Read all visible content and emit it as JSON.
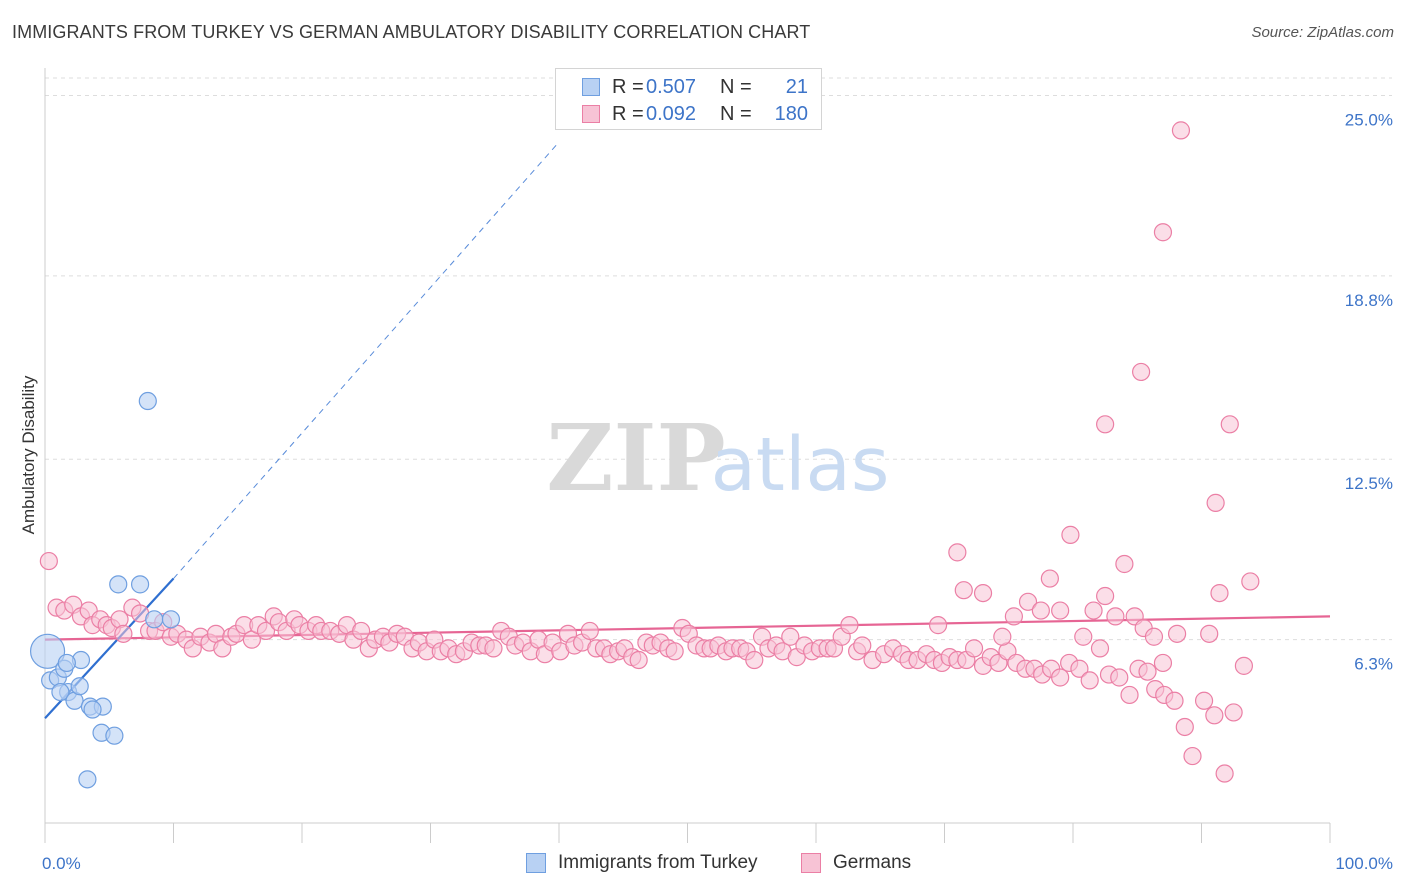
{
  "title": "IMMIGRANTS FROM TURKEY VS GERMAN AMBULATORY DISABILITY CORRELATION CHART",
  "source": "Source: ZipAtlas.com",
  "watermark": {
    "zip": "ZIP",
    "atlas": "atlas"
  },
  "colors": {
    "blue": "#6f9fe0",
    "blue_fill": "#b8d1f3",
    "blue_line": "#2f6fd0",
    "pink": "#eb7fa5",
    "pink_fill": "#f7c3d5",
    "pink_line": "#e66594",
    "axis_text": "#3d74c8",
    "grid": "#dddddd"
  },
  "legend": {
    "rows": [
      {
        "r_label": "R =",
        "r_value": "0.507",
        "n_label": "N =",
        "n_value": "21"
      },
      {
        "r_label": "R =",
        "r_value": "0.092",
        "n_label": "N =",
        "n_value": "180"
      }
    ]
  },
  "bottom_legend": [
    "Immigrants from Turkey",
    "Germans"
  ],
  "chart_data": {
    "type": "scatter",
    "title": "IMMIGRANTS FROM TURKEY VS GERMAN AMBULATORY DISABILITY CORRELATION CHART",
    "xlabel": "",
    "ylabel": "Ambulatory Disability",
    "xlim": [
      0,
      100
    ],
    "ylim": [
      0,
      25.6
    ],
    "x_tick_labels": [
      "0.0%",
      "100.0%"
    ],
    "y_ticks": [
      6.3,
      12.5,
      18.8,
      25.0
    ],
    "y_tick_labels": [
      "6.3%",
      "12.5%",
      "18.8%",
      "25.0%"
    ],
    "grid": true,
    "legend_position": "top-center",
    "series": [
      {
        "name": "Immigrants from Turkey",
        "r": 0.507,
        "n": 21,
        "trend": {
          "x0": 0,
          "y0": 3.6,
          "x1": 10,
          "y1": 8.4,
          "extend_to_x": 40,
          "extend_to_y": 23.4
        },
        "points": [
          [
            0.2,
            5.9
          ],
          [
            0.4,
            4.9
          ],
          [
            1.0,
            5.0
          ],
          [
            1.5,
            5.3
          ],
          [
            1.8,
            4.5
          ],
          [
            1.2,
            4.5
          ],
          [
            2.3,
            4.2
          ],
          [
            2.8,
            5.6
          ],
          [
            2.7,
            4.7
          ],
          [
            3.5,
            4.0
          ],
          [
            4.5,
            4.0
          ],
          [
            3.7,
            3.9
          ],
          [
            4.4,
            3.1
          ],
          [
            5.4,
            3.0
          ],
          [
            3.3,
            1.5
          ],
          [
            5.7,
            8.2
          ],
          [
            7.4,
            8.2
          ],
          [
            8.5,
            7.0
          ],
          [
            9.8,
            7.0
          ],
          [
            8.0,
            14.5
          ],
          [
            1.7,
            5.5
          ]
        ]
      },
      {
        "name": "Germans",
        "r": 0.092,
        "n": 180,
        "trend": {
          "x0": 0,
          "y0": 6.3,
          "x1": 100,
          "y1": 7.1
        },
        "points": [
          [
            0.3,
            9.0
          ],
          [
            0.9,
            7.4
          ],
          [
            1.5,
            7.3
          ],
          [
            2.2,
            7.5
          ],
          [
            2.8,
            7.1
          ],
          [
            3.4,
            7.3
          ],
          [
            3.7,
            6.8
          ],
          [
            4.3,
            7.0
          ],
          [
            4.8,
            6.8
          ],
          [
            5.2,
            6.7
          ],
          [
            5.8,
            7.0
          ],
          [
            6.1,
            6.5
          ],
          [
            6.8,
            7.4
          ],
          [
            7.4,
            7.2
          ],
          [
            8.1,
            6.6
          ],
          [
            8.6,
            6.6
          ],
          [
            9.2,
            6.9
          ],
          [
            9.8,
            6.4
          ],
          [
            10.3,
            6.5
          ],
          [
            11.0,
            6.3
          ],
          [
            11.5,
            6.0
          ],
          [
            12.1,
            6.4
          ],
          [
            12.8,
            6.2
          ],
          [
            13.3,
            6.5
          ],
          [
            13.8,
            6.0
          ],
          [
            14.5,
            6.4
          ],
          [
            14.9,
            6.5
          ],
          [
            15.5,
            6.8
          ],
          [
            16.1,
            6.3
          ],
          [
            16.6,
            6.8
          ],
          [
            17.2,
            6.6
          ],
          [
            17.8,
            7.1
          ],
          [
            18.2,
            6.9
          ],
          [
            18.8,
            6.6
          ],
          [
            19.4,
            7.0
          ],
          [
            19.8,
            6.8
          ],
          [
            20.5,
            6.6
          ],
          [
            21.1,
            6.8
          ],
          [
            21.5,
            6.6
          ],
          [
            22.2,
            6.6
          ],
          [
            22.9,
            6.5
          ],
          [
            23.5,
            6.8
          ],
          [
            24.0,
            6.3
          ],
          [
            24.6,
            6.6
          ],
          [
            25.2,
            6.0
          ],
          [
            25.7,
            6.3
          ],
          [
            26.3,
            6.4
          ],
          [
            26.8,
            6.2
          ],
          [
            27.4,
            6.5
          ],
          [
            28.0,
            6.4
          ],
          [
            28.6,
            6.0
          ],
          [
            29.1,
            6.2
          ],
          [
            29.7,
            5.9
          ],
          [
            30.3,
            6.3
          ],
          [
            30.8,
            5.9
          ],
          [
            31.4,
            6.0
          ],
          [
            32.0,
            5.8
          ],
          [
            32.6,
            5.9
          ],
          [
            33.2,
            6.2
          ],
          [
            33.8,
            6.1
          ],
          [
            34.3,
            6.1
          ],
          [
            34.9,
            6.0
          ],
          [
            35.5,
            6.6
          ],
          [
            36.1,
            6.4
          ],
          [
            36.6,
            6.1
          ],
          [
            37.2,
            6.2
          ],
          [
            37.8,
            5.9
          ],
          [
            38.4,
            6.3
          ],
          [
            38.9,
            5.8
          ],
          [
            39.5,
            6.2
          ],
          [
            40.1,
            5.9
          ],
          [
            40.7,
            6.5
          ],
          [
            41.2,
            6.1
          ],
          [
            41.8,
            6.2
          ],
          [
            42.4,
            6.6
          ],
          [
            42.9,
            6.0
          ],
          [
            43.5,
            6.0
          ],
          [
            44.0,
            5.8
          ],
          [
            44.6,
            5.9
          ],
          [
            45.1,
            6.0
          ],
          [
            45.7,
            5.7
          ],
          [
            46.2,
            5.6
          ],
          [
            46.8,
            6.2
          ],
          [
            47.3,
            6.1
          ],
          [
            47.9,
            6.2
          ],
          [
            48.5,
            6.0
          ],
          [
            49.0,
            5.9
          ],
          [
            49.6,
            6.7
          ],
          [
            50.1,
            6.5
          ],
          [
            50.7,
            6.1
          ],
          [
            51.3,
            6.0
          ],
          [
            51.8,
            6.0
          ],
          [
            52.4,
            6.1
          ],
          [
            53.0,
            5.9
          ],
          [
            53.5,
            6.0
          ],
          [
            54.1,
            6.0
          ],
          [
            54.6,
            5.9
          ],
          [
            55.2,
            5.6
          ],
          [
            55.8,
            6.4
          ],
          [
            56.3,
            6.0
          ],
          [
            56.9,
            6.1
          ],
          [
            57.4,
            5.9
          ],
          [
            58.0,
            6.4
          ],
          [
            58.5,
            5.7
          ],
          [
            59.1,
            6.1
          ],
          [
            59.7,
            5.9
          ],
          [
            60.3,
            6.0
          ],
          [
            60.9,
            6.0
          ],
          [
            61.4,
            6.0
          ],
          [
            62.0,
            6.4
          ],
          [
            62.6,
            6.8
          ],
          [
            63.2,
            5.9
          ],
          [
            63.6,
            6.1
          ],
          [
            64.4,
            5.6
          ],
          [
            65.3,
            5.8
          ],
          [
            66.0,
            6.0
          ],
          [
            66.7,
            5.8
          ],
          [
            67.2,
            5.6
          ],
          [
            67.9,
            5.6
          ],
          [
            68.6,
            5.8
          ],
          [
            69.2,
            5.6
          ],
          [
            69.8,
            5.5
          ],
          [
            70.4,
            5.7
          ],
          [
            71.0,
            5.6
          ],
          [
            71.7,
            5.6
          ],
          [
            72.3,
            6.0
          ],
          [
            73.0,
            5.4
          ],
          [
            73.6,
            5.7
          ],
          [
            74.2,
            5.5
          ],
          [
            74.9,
            5.9
          ],
          [
            75.6,
            5.5
          ],
          [
            76.3,
            5.3
          ],
          [
            77.0,
            5.3
          ],
          [
            77.6,
            5.1
          ],
          [
            78.3,
            5.3
          ],
          [
            79.0,
            5.0
          ],
          [
            79.7,
            5.5
          ],
          [
            80.5,
            5.3
          ],
          [
            81.3,
            4.9
          ],
          [
            82.1,
            6.0
          ],
          [
            82.8,
            5.1
          ],
          [
            83.6,
            5.0
          ],
          [
            84.4,
            4.4
          ],
          [
            85.1,
            5.3
          ],
          [
            85.8,
            5.2
          ],
          [
            86.4,
            4.6
          ],
          [
            87.1,
            4.4
          ],
          [
            87.9,
            4.2
          ],
          [
            88.7,
            3.3
          ],
          [
            89.3,
            2.3
          ],
          [
            90.2,
            4.2
          ],
          [
            91.0,
            3.7
          ],
          [
            91.8,
            1.7
          ],
          [
            92.5,
            3.8
          ],
          [
            93.3,
            5.4
          ],
          [
            69.5,
            6.8
          ],
          [
            71.5,
            8.0
          ],
          [
            71.0,
            9.3
          ],
          [
            73.0,
            7.9
          ],
          [
            74.5,
            6.4
          ],
          [
            75.4,
            7.1
          ],
          [
            76.5,
            7.6
          ],
          [
            77.5,
            7.3
          ],
          [
            78.2,
            8.4
          ],
          [
            79.0,
            7.3
          ],
          [
            79.8,
            9.9
          ],
          [
            80.8,
            6.4
          ],
          [
            81.6,
            7.3
          ],
          [
            82.5,
            7.8
          ],
          [
            83.3,
            7.1
          ],
          [
            84.0,
            8.9
          ],
          [
            84.8,
            7.1
          ],
          [
            85.5,
            6.7
          ],
          [
            86.3,
            6.4
          ],
          [
            87.0,
            5.5
          ],
          [
            88.1,
            6.5
          ],
          [
            90.6,
            6.5
          ],
          [
            91.4,
            7.9
          ],
          [
            93.8,
            8.3
          ],
          [
            91.1,
            11.0
          ],
          [
            92.2,
            13.7
          ],
          [
            82.5,
            13.7
          ],
          [
            85.3,
            15.5
          ],
          [
            87.0,
            20.3
          ],
          [
            88.4,
            23.8
          ]
        ]
      }
    ]
  }
}
